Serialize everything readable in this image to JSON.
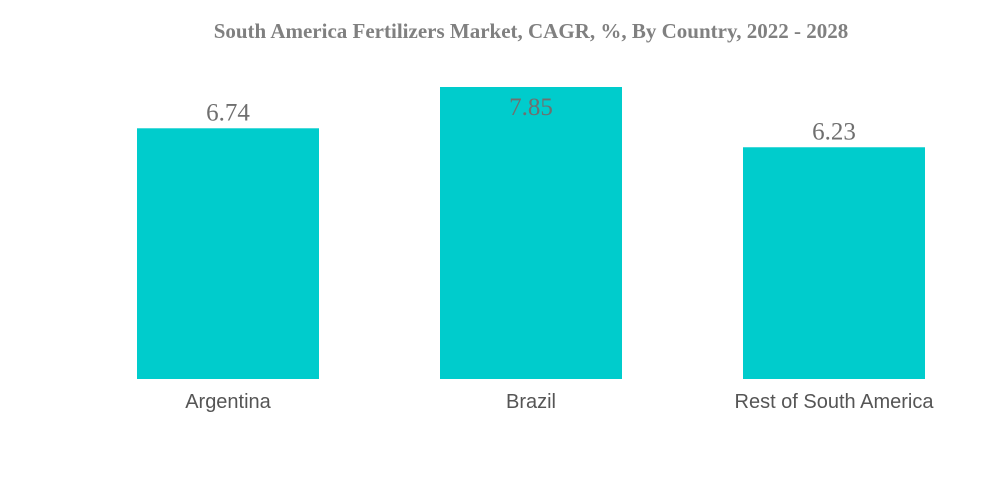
{
  "chart_data": {
    "type": "bar",
    "title": "South America Fertilizers Market, CAGR, %, By Country, 2022 - 2028",
    "categories": [
      "Argentina",
      "Brazil",
      "Rest of South America"
    ],
    "values": [
      6.74,
      7.85,
      6.23
    ],
    "value_labels": [
      "6.74",
      "7.85",
      "6.23"
    ],
    "xlabel": "",
    "ylabel": "",
    "ylim": [
      0,
      7.85
    ],
    "grid": false,
    "legend": "none",
    "bar_color": "#00CCCC"
  }
}
